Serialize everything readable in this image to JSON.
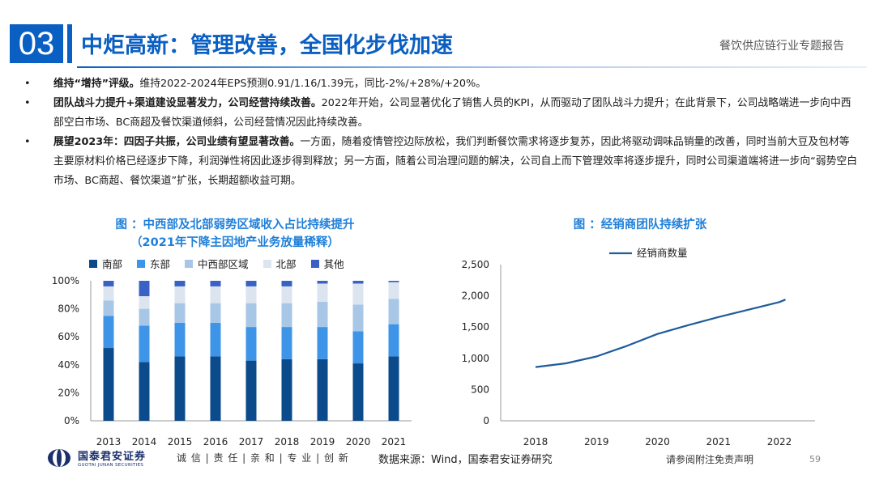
{
  "header": {
    "section_number": "03",
    "title": "中炬高新：管理改善，全国化步伐加速",
    "report_name": "餐饮供应链行业专题报告"
  },
  "bullets": [
    {
      "bold": "维持“增持”评级。",
      "text": "维持2022-2024年EPS预测0.91/1.16/1.39元，同比-2%/+28%/+20%。"
    },
    {
      "bold": "团队战斗力提升+渠道建设显著发力，公司经营持续改善。",
      "text": "2022年开始，公司显著优化了销售人员的KPI，从而驱动了团队战斗力提升；在此背景下，公司战略端进一步向中西部空白市场、BC商超及餐饮渠道倾斜，公司经营情况因此持续改善。"
    },
    {
      "bold": "展望2023年：四因子共振，公司业绩有望显著改善。",
      "text": "一方面，随着疫情管控边际放松，我们判断餐饮需求将逐步复苏，因此将驱动调味品销量的改善，同时当前大豆及包材等主要原材料价格已经逐步下降，利润弹性将因此逐步得到释放；另一方面，随着公司治理问题的解决，公司自上而下管理效率将逐步提升，同时公司渠道端将进一步向“弱势空白市场、BC商超、餐饮渠道”扩张，长期超额收益可期。"
    }
  ],
  "figure1": {
    "title_line1": "图 ：中西部及北部弱势区域收入占比持续提升",
    "title_line2": "（2021年下降主因地产业务放量稀释）"
  },
  "figure2": {
    "title": "图 ：经销商团队持续扩张"
  },
  "chart_data": [
    {
      "type": "bar",
      "stacked": true,
      "categories": [
        "2013",
        "2014",
        "2015",
        "2016",
        "2017",
        "2018",
        "2019",
        "2020",
        "2021"
      ],
      "series": [
        {
          "name": "南部",
          "color": "#0b4a8b",
          "values": [
            52,
            42,
            46,
            46,
            43,
            44,
            44,
            41,
            46
          ]
        },
        {
          "name": "东部",
          "color": "#3e95e8",
          "values": [
            23,
            26,
            24,
            24,
            24,
            23,
            23,
            23,
            23
          ]
        },
        {
          "name": "中西部区域",
          "color": "#a8c6e6",
          "values": [
            11,
            12,
            14,
            14,
            17,
            17,
            18,
            19,
            18
          ]
        },
        {
          "name": "北部",
          "color": "#dbe4ef",
          "values": [
            10,
            9,
            12,
            12,
            12,
            12,
            13,
            15,
            12
          ]
        },
        {
          "name": "其他",
          "color": "#3a62c4",
          "values": [
            4,
            11,
            4,
            4,
            4,
            4,
            2,
            2,
            1
          ]
        }
      ],
      "y_ticks": [
        "0%",
        "20%",
        "40%",
        "60%",
        "80%",
        "100%"
      ],
      "ylim": [
        0,
        100
      ]
    },
    {
      "type": "line",
      "x": [
        "2018",
        "2019",
        "2020",
        "2021",
        "2022"
      ],
      "series": [
        {
          "name": "经销商数量",
          "color": "#1f5b9a",
          "values": [
            860,
            920,
            1030,
            1200,
            1390,
            1530,
            1660,
            1780,
            1900,
            1940
          ],
          "x_values": [
            2018,
            2018.5,
            2019,
            2019.5,
            2020,
            2020.5,
            2021,
            2021.5,
            2022,
            2022.1
          ]
        }
      ],
      "y_ticks": [
        "0",
        "500",
        "1,000",
        "1,500",
        "2,000",
        "2,500"
      ],
      "y_tick_values": [
        0,
        500,
        1000,
        1500,
        2000,
        2500
      ],
      "ylim": [
        0,
        2500
      ]
    }
  ],
  "footer": {
    "logo_cn": "国泰君安证券",
    "logo_en": "GUOTAI JUNAN SECURITIES",
    "slogan": "诚 信 | 责 任 | 亲 和 | 专 业 | 创 新",
    "source": "数据来源：Wind，国泰君安证券研究",
    "disclaimer": "请参阅附注免责声明",
    "page": "59"
  }
}
